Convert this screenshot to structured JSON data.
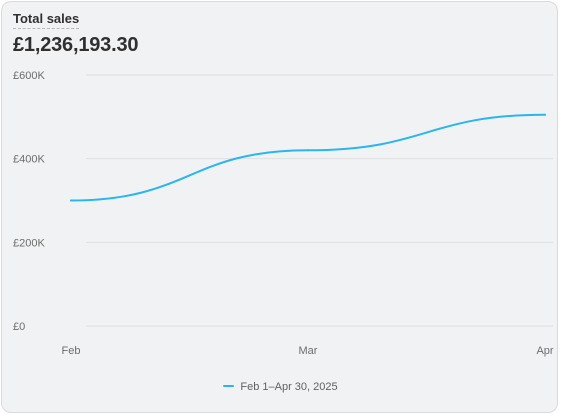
{
  "card": {
    "title": "Total sales",
    "total": "£1,236,193.30"
  },
  "colors": {
    "line": "#29b6ee",
    "grid": "#dedfe2",
    "tick": "#6d6d6d"
  },
  "chart_data": {
    "type": "line",
    "title": "Total sales",
    "xlabel": "",
    "ylabel": "",
    "ylim": [
      0,
      600000
    ],
    "yticks": [
      0,
      200000,
      400000,
      600000
    ],
    "ytick_labels": [
      "£0",
      "£200K",
      "£400K",
      "£600K"
    ],
    "xtick_labels": [
      "Feb",
      "Mar",
      "Apr"
    ],
    "grid": true,
    "legend_position": "bottom",
    "series": [
      {
        "name": "Feb 1–Apr 30, 2025",
        "x": [
          "Feb",
          "Mar",
          "Apr"
        ],
        "values": [
          300000,
          420000,
          505000
        ]
      }
    ]
  }
}
